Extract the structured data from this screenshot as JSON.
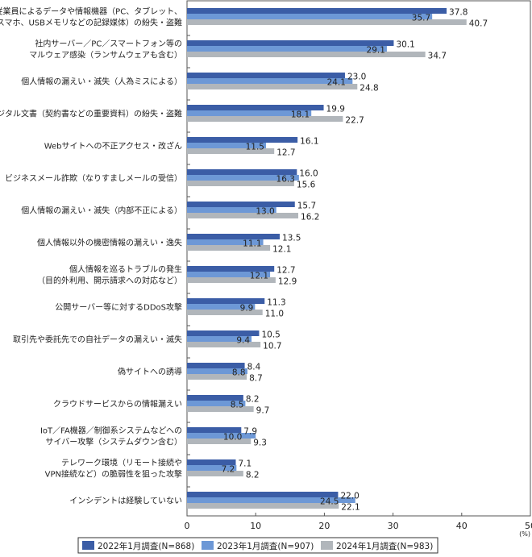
{
  "chart_data": {
    "type": "bar",
    "orientation": "horizontal",
    "categories": [
      [
        "従業員によるデータや情報機器（PC、タブレット、",
        "スマホ、USBメモリなどの記録媒体）の紛失・盗難"
      ],
      [
        "社内サーバー／PC／スマートフォン等の",
        "マルウェア感染（ランサムウェアも含む）"
      ],
      [
        "個人情報の漏えい・滅失（人為ミスによる）"
      ],
      [
        "非デジタル文書（契約書などの重要資料）の紛失・盗難"
      ],
      [
        "Webサイトへの不正アクセス・改ざん"
      ],
      [
        "ビジネスメール詐欺（なりすましメールの受信）"
      ],
      [
        "個人情報の漏えい・滅失（内部不正による）"
      ],
      [
        "個人情報以外の機密情報の漏えい・逸失"
      ],
      [
        "個人情報を巡るトラブルの発生",
        "（目的外利用、開示請求への対応など）"
      ],
      [
        "公開サーバー等に対するDDoS攻撃"
      ],
      [
        "取引先や委託先での自社データの漏えい・滅失"
      ],
      [
        "偽サイトへの誘導"
      ],
      [
        "クラウドサービスからの情報漏えい"
      ],
      [
        "IoT／FA機器／制御系システムなどへの",
        "サイバー攻撃（システムダウン含む）"
      ],
      [
        "テレワーク環境（リモート接続や",
        "VPN接続など）の脆弱性を狙った攻撃"
      ],
      [
        "インシデントは経験していない"
      ]
    ],
    "series": [
      {
        "name": "2022年1月調査(N=868)",
        "color": "#3b5da6",
        "values": [
          37.8,
          30.1,
          23.0,
          19.9,
          16.1,
          16.0,
          15.7,
          13.5,
          12.7,
          11.3,
          10.5,
          8.4,
          8.2,
          7.9,
          7.1,
          22.0
        ]
      },
      {
        "name": "2023年1月調査(N=907)",
        "color": "#6d98d6",
        "values": [
          35.7,
          29.1,
          24.1,
          18.1,
          11.5,
          16.3,
          13.0,
          11.1,
          12.1,
          9.9,
          9.4,
          8.8,
          8.5,
          10.0,
          7.2,
          24.5
        ]
      },
      {
        "name": "2024年1月調査(N=983)",
        "color": "#b1b6bb",
        "values": [
          40.7,
          34.7,
          24.8,
          22.7,
          12.7,
          15.6,
          16.2,
          12.1,
          12.9,
          11.0,
          10.7,
          8.7,
          9.7,
          9.3,
          8.2,
          22.1
        ]
      }
    ],
    "xlim": [
      0,
      50
    ],
    "xticks": [
      "0",
      "10",
      "20",
      "30",
      "40",
      "50"
    ],
    "xunit": "(%)",
    "legend": "bottom"
  }
}
